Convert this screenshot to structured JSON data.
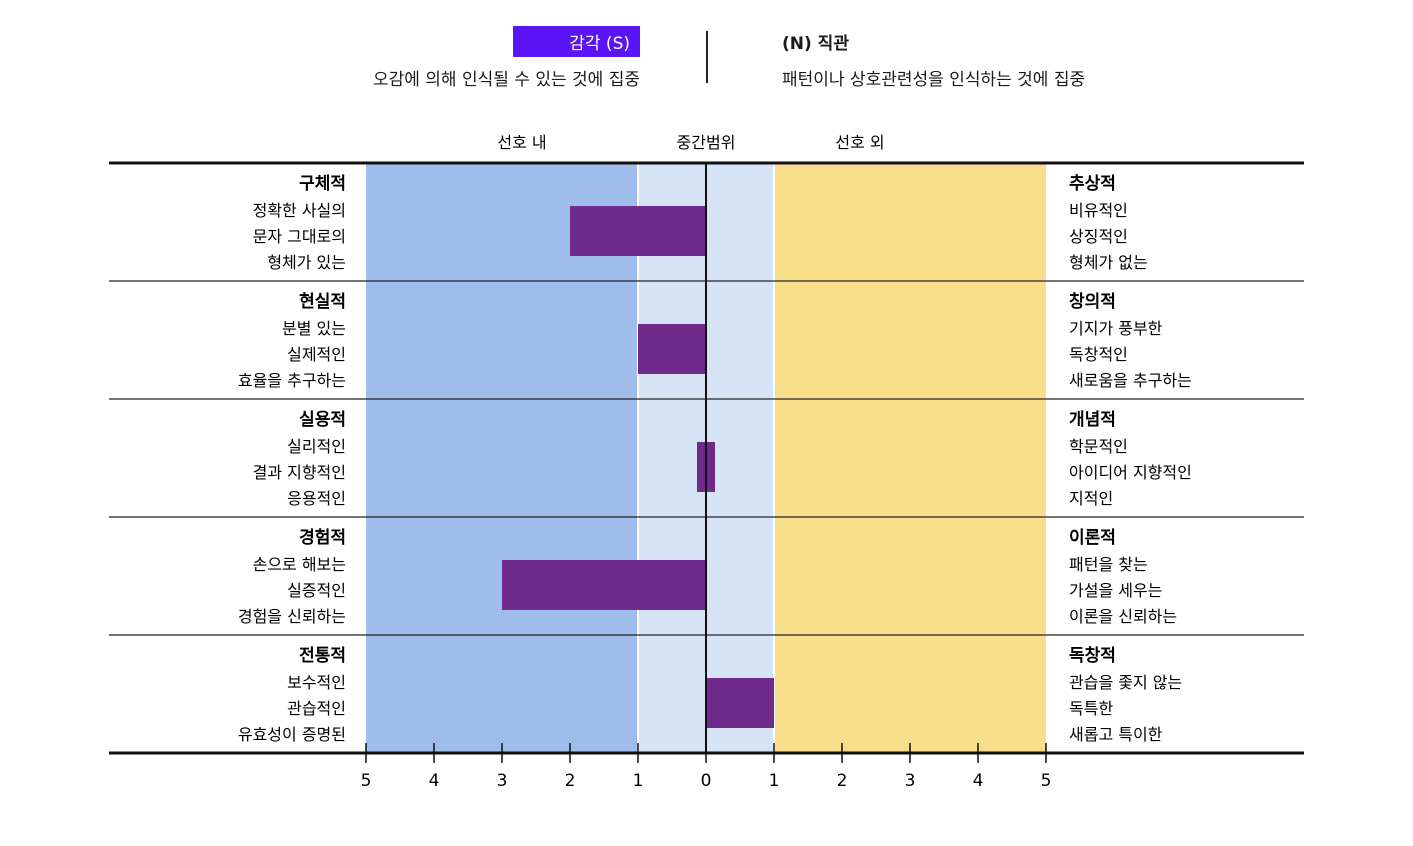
{
  "header": {
    "left_badge": "감각 (S)",
    "left_desc": "오감에 의해 인식될 수 있는 것에 집중",
    "right_title": "(N) 직관",
    "right_desc": "패턴이나 상호관련성을 인식하는 것에 집중"
  },
  "colors": {
    "pref_in": "#9ebdeb",
    "middle": "#d7e4f6",
    "pref_out": "#f9df8c",
    "bar": "#6f2a8c",
    "badge": "#5a14f5"
  },
  "chart_data": {
    "type": "bar",
    "orientation": "horizontal",
    "zones": [
      {
        "label": "선호 내",
        "from": -5,
        "to": -1
      },
      {
        "label": "중간범위",
        "from": -1,
        "to": 1
      },
      {
        "label": "선호 외",
        "from": 1,
        "to": 5
      }
    ],
    "xlim": [
      -5,
      5
    ],
    "ticks": [
      -5,
      -4,
      -3,
      -2,
      -1,
      0,
      1,
      2,
      3,
      4,
      5
    ],
    "tick_labels": [
      "5",
      "4",
      "3",
      "2",
      "1",
      "0",
      "1",
      "2",
      "3",
      "4",
      "5"
    ],
    "rows": [
      {
        "left_title": "구체적",
        "left_items": [
          "정확한 사실의",
          "문자 그대로의",
          "형체가 있는"
        ],
        "right_title": "추상적",
        "right_items": [
          "비유적인",
          "상징적인",
          "형체가 없는"
        ],
        "value": -2
      },
      {
        "left_title": "현실적",
        "left_items": [
          "분별 있는",
          "실제적인",
          "효율을 추구하는"
        ],
        "right_title": "창의적",
        "right_items": [
          "기지가 풍부한",
          "독창적인",
          "새로움을 추구하는"
        ],
        "value": -1
      },
      {
        "left_title": "실용적",
        "left_items": [
          "실리적인",
          "결과 지향적인",
          "응용적인"
        ],
        "right_title": "개념적",
        "right_items": [
          "학문적인",
          "아이디어 지향적인",
          "지적인"
        ],
        "value": 0
      },
      {
        "left_title": "경험적",
        "left_items": [
          "손으로 해보는",
          "실증적인",
          "경험을 신뢰하는"
        ],
        "right_title": "이론적",
        "right_items": [
          "패턴을 찾는",
          "가설을 세우는",
          "이론을 신뢰하는"
        ],
        "value": -3
      },
      {
        "left_title": "전통적",
        "left_items": [
          "보수적인",
          "관습적인",
          "유효성이 증명된"
        ],
        "right_title": "독창적",
        "right_items": [
          "관습을 좇지 않는",
          "독특한",
          "새롭고 특이한"
        ],
        "value": 1
      }
    ]
  }
}
